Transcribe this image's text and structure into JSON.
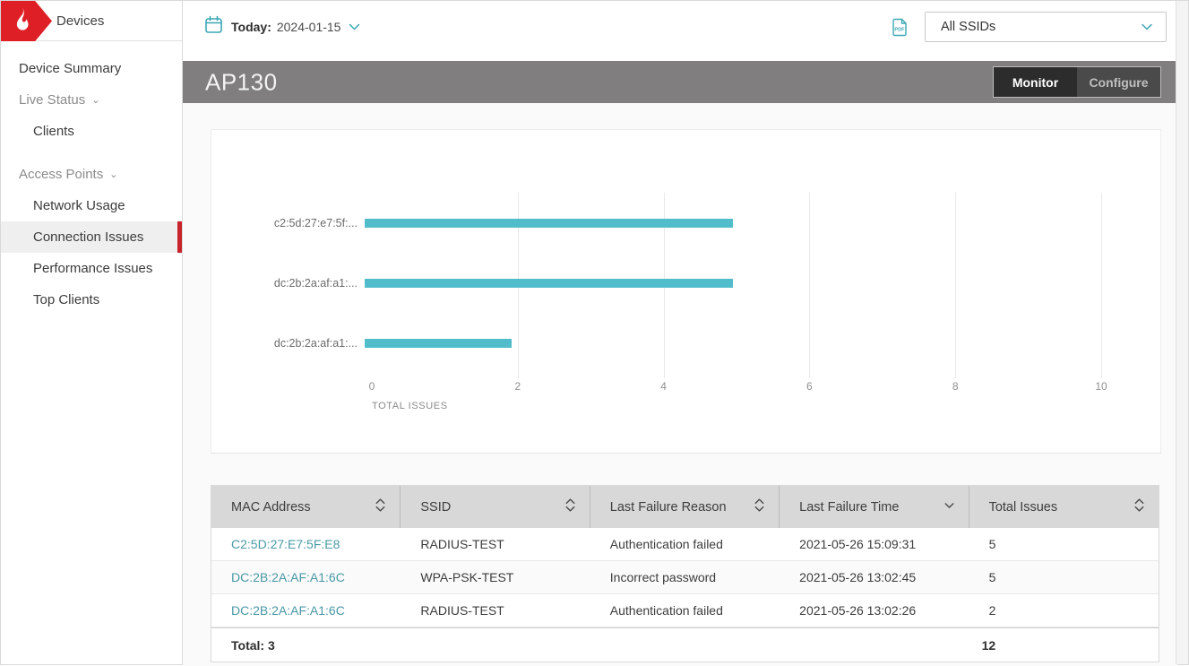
{
  "app": {
    "section_title": "Devices"
  },
  "topbar": {
    "date_label": "Today:",
    "date_value": "2024-01-15",
    "ssid_dropdown_value": "All SSIDs"
  },
  "sidebar": {
    "items": [
      {
        "label": "Device Summary",
        "type": "link",
        "active": false
      },
      {
        "label": "Live Status",
        "type": "section",
        "active": false
      },
      {
        "label": "Clients",
        "type": "sublink",
        "active": false
      },
      {
        "label": "Access Points",
        "type": "section",
        "active": false
      },
      {
        "label": "Network Usage",
        "type": "sublink",
        "active": false
      },
      {
        "label": "Connection Issues",
        "type": "sublink",
        "active": true
      },
      {
        "label": "Performance Issues",
        "type": "sublink",
        "active": false
      },
      {
        "label": "Top Clients",
        "type": "sublink",
        "active": false
      }
    ]
  },
  "device_header": {
    "title": "AP130",
    "tabs": [
      {
        "label": "Monitor",
        "active": true
      },
      {
        "label": "Configure",
        "active": false
      }
    ]
  },
  "chart_data": {
    "type": "bar",
    "orientation": "horizontal",
    "categories": [
      "c2:5d:27:e7:5f:...",
      "dc:2b:2a:af:a1:...",
      "dc:2b:2a:af:a1:..."
    ],
    "values": [
      5,
      5,
      2
    ],
    "title": "",
    "xlabel": "TOTAL ISSUES",
    "ylabel": "",
    "xlim": [
      0,
      10
    ],
    "xticks": [
      0,
      2,
      4,
      6,
      8,
      10
    ],
    "grid": true,
    "bar_color": "#52bdca"
  },
  "table": {
    "columns": [
      {
        "label": "MAC Address",
        "sort": "both"
      },
      {
        "label": "SSID",
        "sort": "both"
      },
      {
        "label": "Last Failure Reason",
        "sort": "both"
      },
      {
        "label": "Last Failure Time",
        "sort": "desc"
      },
      {
        "label": "Total Issues",
        "sort": "both"
      }
    ],
    "rows": [
      {
        "mac": "C2:5D:27:E7:5F:E8",
        "ssid": "RADIUS-TEST",
        "reason": "Authentication failed",
        "time": "2021-05-26 15:09:31",
        "issues": "5"
      },
      {
        "mac": "DC:2B:2A:AF:A1:6C",
        "ssid": "WPA-PSK-TEST",
        "reason": "Incorrect password",
        "time": "2021-05-26 13:02:45",
        "issues": "5"
      },
      {
        "mac": "DC:2B:2A:AF:A1:6C",
        "ssid": "RADIUS-TEST",
        "reason": "Authentication failed",
        "time": "2021-05-26 13:02:26",
        "issues": "2"
      }
    ],
    "total_label": "Total: 3",
    "total_issues": "12"
  },
  "colors": {
    "brand_red": "#df1f26",
    "active_marker_red": "#c8232a",
    "accent_teal": "#3aa7b4",
    "bar_teal": "#52bdca",
    "link_teal": "#4a98a6",
    "device_bar_gray": "#807e7e"
  },
  "icons": {
    "logo": "flame-icon",
    "date": "calendar-icon",
    "export": "pdf-export-icon",
    "dropdown": "chevron-down-icon",
    "sort": "sort-icon"
  }
}
